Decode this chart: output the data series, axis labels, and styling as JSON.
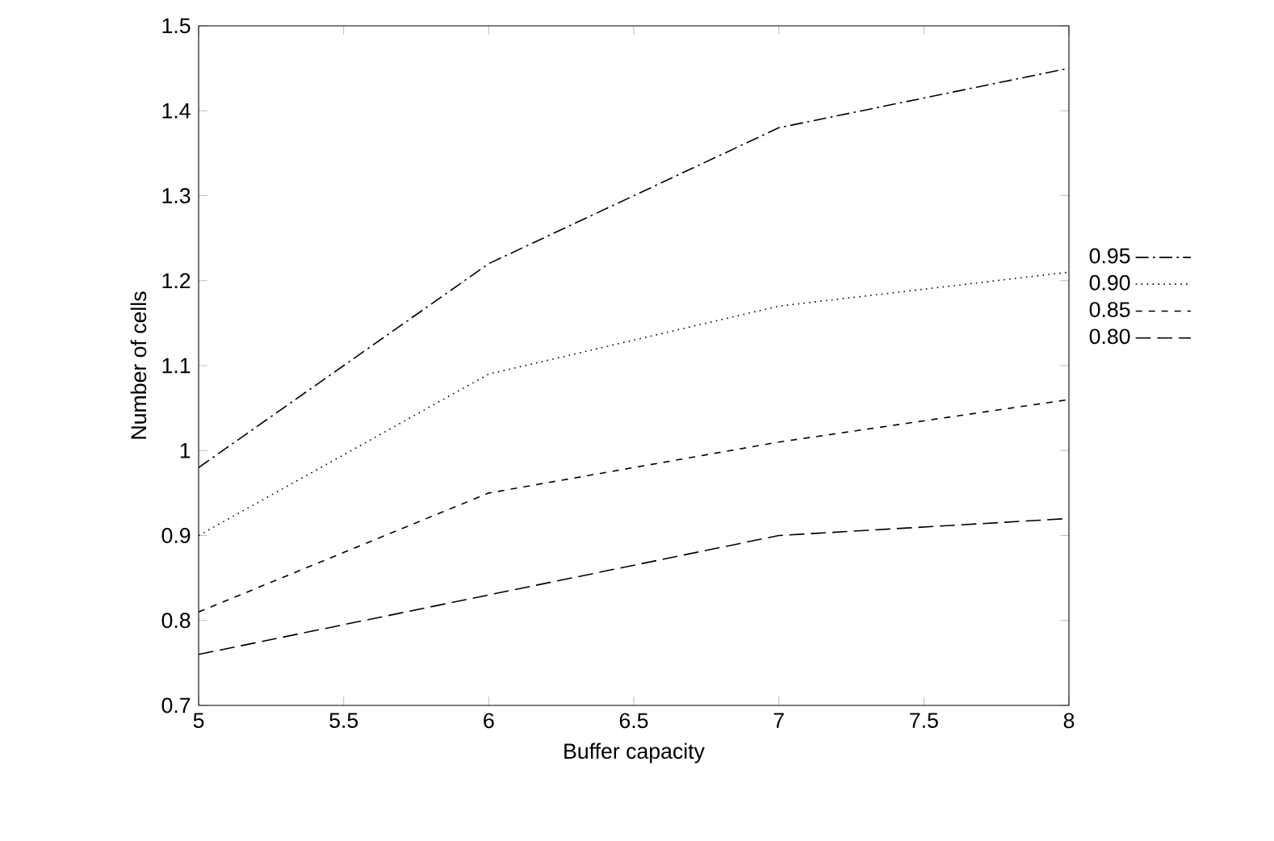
{
  "chart_data": {
    "type": "line",
    "xlabel": "Buffer capacity",
    "ylabel": "Number of cells",
    "x": [
      5,
      6,
      7,
      8
    ],
    "series": [
      {
        "name": "0.95",
        "color": "#000000",
        "line_style": "dashdot",
        "values": [
          0.98,
          1.22,
          1.38,
          1.45
        ]
      },
      {
        "name": "0.90",
        "color": "#000000",
        "line_style": "dotted",
        "values": [
          0.9,
          1.09,
          1.17,
          1.21
        ]
      },
      {
        "name": "0.85",
        "color": "#000000",
        "line_style": "dashed",
        "values": [
          0.81,
          0.95,
          1.01,
          1.06
        ]
      },
      {
        "name": "0.80",
        "color": "#000000",
        "line_style": "loosely dashed",
        "values": [
          0.76,
          0.83,
          0.9,
          0.92
        ]
      }
    ],
    "xlim": [
      5,
      8
    ],
    "xticks": [
      5,
      5.5,
      6,
      6.5,
      7,
      7.5,
      8
    ],
    "ylim": [
      0.7,
      1.5
    ],
    "yticks": [
      0.7,
      0.8,
      0.9,
      1,
      1.1,
      1.2,
      1.3,
      1.4,
      1.5
    ],
    "grid": false,
    "legend": "right"
  }
}
